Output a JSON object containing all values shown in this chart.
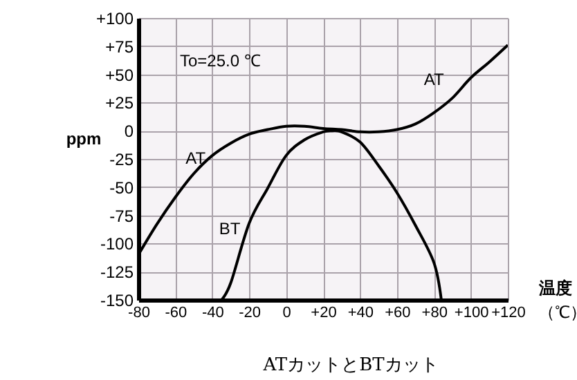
{
  "chart_data": {
    "type": "line",
    "title": "ATカットとBTカット",
    "xlabel": "温度",
    "ylabel": "ppm",
    "annotations": [
      "To=25.0 ℃",
      "（℃）"
    ],
    "xlim": [
      -80,
      120
    ],
    "ylim": [
      -150,
      100
    ],
    "xticks": [
      -80,
      -60,
      -40,
      -20,
      0,
      {
        "value": 20,
        "label": "+20"
      },
      {
        "value": 40,
        "label": "+40"
      },
      {
        "value": 60,
        "label": "+60"
      },
      {
        "value": 80,
        "label": "+80"
      },
      {
        "value": 100,
        "label": "+100"
      },
      {
        "value": 120,
        "label": "+120"
      }
    ],
    "yticks": [
      -150,
      -125,
      -100,
      -75,
      -50,
      -25,
      0,
      {
        "value": 25,
        "label": "+25"
      },
      {
        "value": 50,
        "label": "+50"
      },
      {
        "value": 75,
        "label": "+75"
      },
      {
        "value": 100,
        "label": "+100"
      }
    ],
    "grid": true,
    "legend": false,
    "series": [
      {
        "name": "AT",
        "color": "#000000",
        "x": [
          -80,
          -70,
          -60,
          -50,
          -40,
          -30,
          -20,
          -10,
          0,
          10,
          20,
          30,
          40,
          50,
          60,
          70,
          80,
          90,
          100,
          110,
          120
        ],
        "values": [
          -110,
          -83,
          -59,
          -38,
          -22,
          -11,
          -3,
          1,
          4,
          4,
          2,
          1,
          -1,
          -1,
          1,
          6,
          16,
          29,
          47,
          61,
          76
        ]
      },
      {
        "name": "BT",
        "color": "#000000",
        "x": [
          -35,
          -30,
          -20,
          -10,
          0,
          10,
          20,
          25,
          30,
          40,
          50,
          60,
          70,
          80,
          84
        ],
        "values": [
          -150,
          -135,
          -82,
          -51,
          -22,
          -8,
          -1,
          0,
          -1,
          -10,
          -31,
          -55,
          -84,
          -117,
          -150
        ]
      }
    ]
  }
}
